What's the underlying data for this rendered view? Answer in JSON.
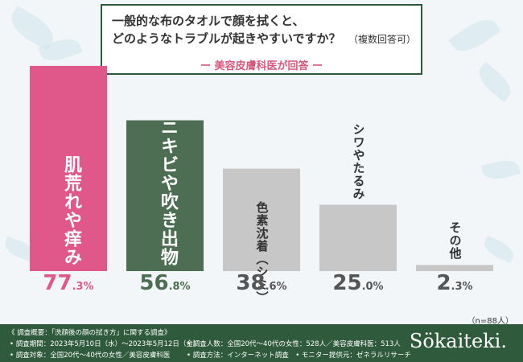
{
  "header": {
    "title_line1": "一般的な布のタオルで顔を拭くと、",
    "title_line2": "どのようなトラブルが起きやすいですか？",
    "title_note": "（複数回答可）",
    "subtitle": "ー 美容皮膚科医が回答 ー"
  },
  "chart_data": {
    "type": "bar",
    "categories": [
      "肌荒れや痒み",
      "ニキビや吹き出物",
      "色素沈着（シミ）",
      "シワやたるみ",
      "その他"
    ],
    "values": [
      77.3,
      56.8,
      38.6,
      25.0,
      2.3
    ],
    "value_labels": [
      {
        "big": "77",
        "small": ".3%"
      },
      {
        "big": "56",
        "small": ".8%"
      },
      {
        "big": "38",
        "small": ".6%"
      },
      {
        "big": "25",
        "small": ".0%"
      },
      {
        "big": "2",
        "small": ".3%"
      }
    ],
    "bar_colors": [
      "#e0588a",
      "#4d6e53",
      "#c7c7c7",
      "#c7c7c7",
      "#c7c7c7"
    ],
    "label_colors": [
      "#ffffff",
      "#ffffff",
      "#333333",
      "#333333",
      "#333333"
    ],
    "pct_colors": [
      "#e0588a",
      "#4d6e53",
      "#555555",
      "#555555",
      "#555555"
    ],
    "ylim": [
      0,
      100
    ],
    "sample_note": "（n=88人）"
  },
  "footer": {
    "line1": "《 調査概要：「洗顔後の顔の拭き方」に関する調査》",
    "line2a": "• 調査期間：2023年5月10日（水）〜2023年5月12日（金）",
    "line2b": "• 調査人数：全国20代〜40代の女性：528人／美容皮膚科医：513人",
    "line3a": "• 調査対象：全国20代〜40代の女性／美容皮膚科医",
    "line3b": "• 調査方法：インターネット調査　• モニター提供元：ゼネラルリサーチ",
    "brand": "Sökaiteki."
  }
}
